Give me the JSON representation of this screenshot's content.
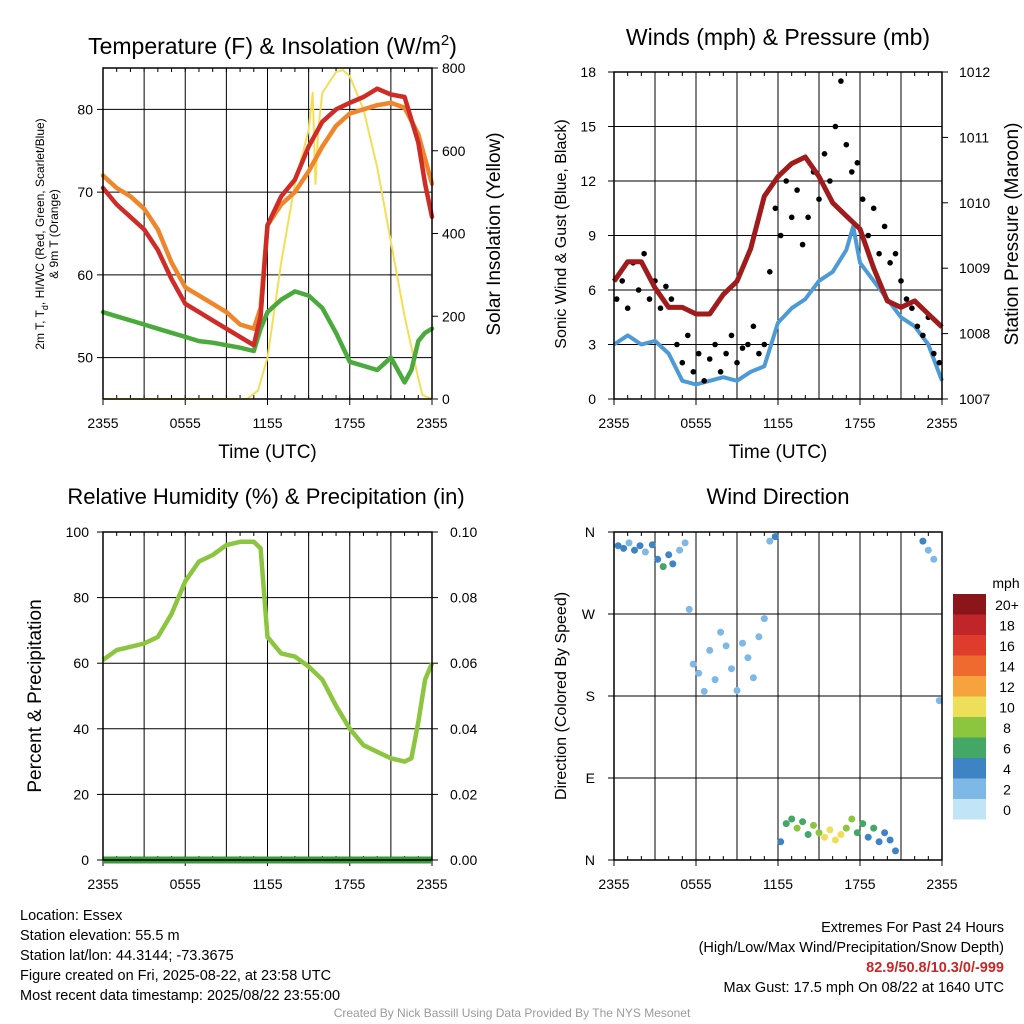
{
  "chart_data": [
    {
      "type": "line",
      "title": "Temperature (F) & Insolation (W/m",
      "title_sup": "2",
      "title_suffix": ")",
      "xlabel": "Time (UTC)",
      "ylabel_lines": [
        "2m T, T",
        "d",
        ", HI/WC (Red, Green, Scarlet/Blue)",
        "& 9m T (Orange)"
      ],
      "y2label": "Solar Insolation (Yellow)",
      "x_ticks": [
        "2355",
        "0555",
        "1155",
        "1755",
        "2355"
      ],
      "ylim": [
        45,
        85
      ],
      "y_ticks": [
        "50",
        "60",
        "70",
        "80"
      ],
      "y2lim": [
        0,
        800
      ],
      "y2_ticks": [
        "0",
        "200",
        "400",
        "600",
        "800"
      ],
      "x_hours": [
        0,
        24
      ],
      "series": [
        {
          "color": "#f0862c",
          "x": [
            0,
            1,
            2,
            3,
            4,
            5,
            6,
            7,
            8,
            9,
            10,
            11,
            11.5,
            12,
            13,
            14,
            15,
            16,
            17,
            18,
            19,
            20,
            21,
            22,
            23,
            23.5,
            24
          ],
          "y": [
            72,
            70.5,
            69.5,
            68,
            65.5,
            61.5,
            58.5,
            57.5,
            56.5,
            55.5,
            54,
            53.5,
            56,
            66,
            68.5,
            70,
            72.5,
            75.5,
            78,
            79.5,
            80,
            80.5,
            80.8,
            80.2,
            77,
            74,
            71
          ]
        },
        {
          "color": "#cf2b27",
          "x": [
            0,
            1,
            2,
            3,
            4,
            5,
            6,
            7,
            8,
            9,
            10,
            11,
            11.5,
            12,
            13,
            14,
            15,
            16,
            17,
            18,
            19,
            20,
            21,
            22,
            23,
            23.5,
            24
          ],
          "y": [
            70.5,
            68.5,
            67,
            65.5,
            63,
            59.5,
            56.5,
            55.5,
            54.5,
            53.5,
            52.5,
            51.5,
            55,
            66,
            69.5,
            71.5,
            75.5,
            78.5,
            80,
            80.8,
            81.5,
            82.5,
            81.8,
            81.5,
            76,
            71,
            67
          ]
        },
        {
          "color": "#4aab3c",
          "x": [
            0,
            1,
            2,
            3,
            4,
            5,
            6,
            7,
            8,
            9,
            10,
            11,
            11.5,
            12,
            13,
            14,
            15,
            16,
            17,
            18,
            19,
            20,
            21,
            22,
            22.5,
            23,
            23.5,
            24
          ],
          "y": [
            55.5,
            55,
            54.5,
            54,
            53.5,
            53,
            52.5,
            52,
            51.8,
            51.5,
            51.2,
            50.8,
            53.5,
            55.5,
            57,
            58,
            57.5,
            56,
            53,
            49.5,
            49,
            48.5,
            50,
            47,
            48.5,
            52,
            53,
            53.5
          ]
        },
        {
          "color": "#f3df57",
          "axis": "y2",
          "x": [
            0,
            10.5,
            11.3,
            12,
            13,
            14,
            15,
            15.3,
            15.5,
            15.7,
            16,
            17,
            17.5,
            18,
            19,
            20,
            21,
            22,
            23,
            23.3,
            24
          ],
          "y": [
            0,
            0,
            20,
            100,
            330,
            520,
            650,
            740,
            520,
            650,
            740,
            790,
            795,
            780,
            700,
            560,
            380,
            200,
            50,
            10,
            0
          ]
        }
      ]
    },
    {
      "type": "line",
      "title": "Winds (mph) & Pressure (mb)",
      "xlabel": "Time (UTC)",
      "ylabel": "Sonic Wind & Gust (Blue, Black)",
      "y2label": "Station Pressure (Maroon)",
      "x_ticks": [
        "2355",
        "0555",
        "1155",
        "1755",
        "2355"
      ],
      "ylim": [
        0,
        18
      ],
      "y_ticks": [
        "0",
        "3",
        "6",
        "9",
        "12",
        "15",
        "18"
      ],
      "y2lim": [
        1007,
        1012
      ],
      "y2_ticks": [
        "1007",
        "1008",
        "1009",
        "1010",
        "1011",
        "1012"
      ],
      "x_hours": [
        0,
        24
      ],
      "series": [
        {
          "color": "#a01c1c",
          "axis": "y2",
          "x": [
            0,
            1,
            2,
            3,
            4,
            5,
            6,
            7,
            8,
            9,
            10,
            11,
            12,
            13,
            14,
            15,
            16,
            17,
            18,
            19,
            20,
            21,
            22,
            23,
            24
          ],
          "y": [
            1008.8,
            1009.1,
            1009.1,
            1008.7,
            1008.4,
            1008.4,
            1008.3,
            1008.3,
            1008.6,
            1008.8,
            1009.3,
            1010.1,
            1010.4,
            1010.6,
            1010.7,
            1010.4,
            1010.0,
            1009.8,
            1009.6,
            1009.0,
            1008.5,
            1008.4,
            1008.5,
            1008.3,
            1008.1
          ]
        },
        {
          "color": "#4d9bd6",
          "x": [
            0,
            1,
            2,
            3,
            4,
            5,
            6,
            7,
            8,
            9,
            10,
            11,
            12,
            13,
            14,
            15,
            16,
            17,
            17.5,
            18,
            19,
            20,
            21,
            22,
            23,
            24
          ],
          "y": [
            3,
            3.5,
            3,
            3.2,
            2.5,
            1,
            0.8,
            1,
            1.2,
            1,
            1.5,
            1.8,
            4.2,
            5.0,
            5.5,
            6.5,
            7.0,
            8.2,
            9.5,
            7.5,
            6.5,
            5.5,
            4.5,
            4,
            3,
            1
          ]
        },
        {
          "color": "#000000",
          "mode": "markers",
          "x": [
            0.2,
            0.6,
            1.0,
            1.4,
            1.8,
            2.2,
            2.6,
            3.0,
            3.4,
            3.8,
            4.2,
            4.6,
            5.0,
            5.4,
            5.8,
            6.2,
            6.6,
            7.0,
            7.4,
            7.8,
            8.2,
            8.6,
            9.0,
            9.4,
            9.8,
            10.2,
            10.6,
            11.0,
            11.4,
            11.8,
            12.2,
            12.6,
            13.0,
            13.4,
            13.8,
            14.2,
            14.6,
            15.0,
            15.4,
            15.8,
            16.2,
            16.6,
            17.0,
            17.4,
            17.8,
            18.2,
            18.6,
            19.0,
            19.4,
            19.8,
            20.2,
            20.6,
            21.0,
            21.4,
            21.8,
            22.2,
            22.6,
            23.0,
            23.4,
            23.8
          ],
          "y": [
            5.5,
            6.5,
            5.0,
            7.5,
            6.0,
            8.0,
            5.5,
            6.5,
            5.0,
            6.2,
            5.5,
            3.0,
            2.0,
            3.5,
            1.5,
            2.5,
            1.0,
            2.2,
            3.0,
            1.5,
            2.5,
            3.5,
            2.0,
            2.8,
            3.0,
            4.0,
            2.5,
            3.0,
            7.0,
            10.5,
            9.0,
            12.0,
            10.0,
            11.5,
            8.5,
            10.0,
            12.5,
            11.0,
            13.5,
            12.0,
            15.0,
            17.5,
            14.0,
            12.5,
            13.0,
            11.0,
            9.0,
            10.5,
            8.0,
            9.5,
            7.5,
            8.0,
            6.5,
            5.5,
            5.0,
            4.0,
            3.5,
            4.5,
            2.5,
            2.0
          ]
        }
      ]
    },
    {
      "type": "line",
      "title": "Relative Humidity (%) & Precipitation (in)",
      "xlabel": "",
      "ylabel": "Percent & Precipitation",
      "x_ticks": [
        "2355",
        "0555",
        "1155",
        "1755",
        "2355"
      ],
      "ylim": [
        0,
        100
      ],
      "y_ticks": [
        "0",
        "20",
        "40",
        "60",
        "80",
        "100"
      ],
      "y2lim": [
        0,
        0.1
      ],
      "y2_ticks": [
        "0.00",
        "0.02",
        "0.04",
        "0.06",
        "0.08",
        "0.10"
      ],
      "x_hours": [
        0,
        24
      ],
      "series": [
        {
          "color": "#8cc63f",
          "x": [
            0,
            1,
            2,
            3,
            4,
            5,
            6,
            7,
            8,
            9,
            10,
            11,
            11.5,
            12,
            13,
            14,
            15,
            16,
            17,
            18,
            19,
            20,
            21,
            22,
            22.5,
            23,
            23.5,
            24
          ],
          "y": [
            61,
            64,
            65,
            66,
            68,
            75,
            85,
            91,
            93,
            96,
            97,
            97,
            95,
            68,
            63,
            62,
            59,
            55,
            47,
            40,
            35,
            33,
            31,
            30,
            31,
            42,
            55,
            60
          ]
        },
        {
          "color": "#3a9a3a",
          "axis": "y2",
          "x": [
            0,
            24
          ],
          "y": [
            0,
            0
          ]
        }
      ]
    },
    {
      "type": "scatter",
      "title": "Wind Direction",
      "xlabel": "",
      "ylabel": "Direction (Colored By Speed)",
      "x_ticks": [
        "2355",
        "0555",
        "1155",
        "1755",
        "2355"
      ],
      "y_tick_labels": [
        "N",
        "E",
        "S",
        "W",
        "N"
      ],
      "ylim": [
        0,
        360
      ],
      "x_hours": [
        0,
        24
      ],
      "colorbar": {
        "title": "mph",
        "labels": [
          "20+",
          "18",
          "16",
          "14",
          "12",
          "10",
          "8",
          "6",
          "4",
          "2",
          "0"
        ],
        "colors": [
          "#8b1518",
          "#c0252a",
          "#e03c2e",
          "#ef6a2e",
          "#f6a33d",
          "#eddf5a",
          "#8cc63f",
          "#44a766",
          "#3e83c4",
          "#7db8e6",
          "#c1e4f7"
        ]
      },
      "points": [
        {
          "x": 0.3,
          "y": 345,
          "speed": 4
        },
        {
          "x": 0.7,
          "y": 342,
          "speed": 3
        },
        {
          "x": 1.1,
          "y": 348,
          "speed": 2
        },
        {
          "x": 1.5,
          "y": 340,
          "speed": 3
        },
        {
          "x": 1.9,
          "y": 345,
          "speed": 4
        },
        {
          "x": 2.3,
          "y": 338,
          "speed": 2
        },
        {
          "x": 2.8,
          "y": 346,
          "speed": 3
        },
        {
          "x": 3.2,
          "y": 330,
          "speed": 4
        },
        {
          "x": 3.6,
          "y": 322,
          "speed": 5
        },
        {
          "x": 4.0,
          "y": 335,
          "speed": 3
        },
        {
          "x": 4.3,
          "y": 325,
          "speed": 4
        },
        {
          "x": 4.8,
          "y": 340,
          "speed": 2
        },
        {
          "x": 5.2,
          "y": 348,
          "speed": 2
        },
        {
          "x": 5.5,
          "y": 275,
          "speed": 1
        },
        {
          "x": 5.8,
          "y": 215,
          "speed": 1
        },
        {
          "x": 6.2,
          "y": 205,
          "speed": 1
        },
        {
          "x": 6.6,
          "y": 185,
          "speed": 1
        },
        {
          "x": 7.0,
          "y": 230,
          "speed": 1
        },
        {
          "x": 7.4,
          "y": 198,
          "speed": 1
        },
        {
          "x": 7.8,
          "y": 250,
          "speed": 1
        },
        {
          "x": 8.2,
          "y": 235,
          "speed": 1
        },
        {
          "x": 8.6,
          "y": 210,
          "speed": 1
        },
        {
          "x": 9.0,
          "y": 186,
          "speed": 1
        },
        {
          "x": 9.4,
          "y": 238,
          "speed": 1
        },
        {
          "x": 9.8,
          "y": 222,
          "speed": 1
        },
        {
          "x": 10.2,
          "y": 200,
          "speed": 1
        },
        {
          "x": 10.6,
          "y": 245,
          "speed": 1
        },
        {
          "x": 11.0,
          "y": 265,
          "speed": 1
        },
        {
          "x": 11.4,
          "y": 350,
          "speed": 2
        },
        {
          "x": 11.8,
          "y": 355,
          "speed": 3
        },
        {
          "x": 12.2,
          "y": 20,
          "speed": 4
        },
        {
          "x": 12.6,
          "y": 40,
          "speed": 5
        },
        {
          "x": 13.0,
          "y": 45,
          "speed": 6
        },
        {
          "x": 13.4,
          "y": 35,
          "speed": 7
        },
        {
          "x": 13.8,
          "y": 42,
          "speed": 6
        },
        {
          "x": 14.2,
          "y": 28,
          "speed": 5
        },
        {
          "x": 14.6,
          "y": 38,
          "speed": 7
        },
        {
          "x": 15.0,
          "y": 30,
          "speed": 8
        },
        {
          "x": 15.4,
          "y": 25,
          "speed": 9
        },
        {
          "x": 15.8,
          "y": 33,
          "speed": 10
        },
        {
          "x": 16.2,
          "y": 22,
          "speed": 10
        },
        {
          "x": 16.6,
          "y": 28,
          "speed": 9
        },
        {
          "x": 17.0,
          "y": 35,
          "speed": 8
        },
        {
          "x": 17.4,
          "y": 45,
          "speed": 7
        },
        {
          "x": 17.8,
          "y": 30,
          "speed": 6
        },
        {
          "x": 18.2,
          "y": 40,
          "speed": 5
        },
        {
          "x": 18.6,
          "y": 25,
          "speed": 4
        },
        {
          "x": 19.0,
          "y": 35,
          "speed": 5
        },
        {
          "x": 19.4,
          "y": 20,
          "speed": 4
        },
        {
          "x": 19.8,
          "y": 30,
          "speed": 3
        },
        {
          "x": 20.2,
          "y": 22,
          "speed": 4
        },
        {
          "x": 20.6,
          "y": 10,
          "speed": 3
        },
        {
          "x": 22.6,
          "y": 350,
          "speed": 3
        },
        {
          "x": 23.0,
          "y": 340,
          "speed": 2
        },
        {
          "x": 23.4,
          "y": 330,
          "speed": 2
        },
        {
          "x": 23.8,
          "y": 175,
          "speed": 1
        }
      ]
    }
  ],
  "info_left": {
    "location": "Location: Essex",
    "elevation": "Station elevation: 55.5 m",
    "latlon": "Station lat/lon: 44.3144; -73.3675",
    "created": "Figure created on Fri, 2025-08-22, at 23:58 UTC",
    "recent": "Most recent data timestamp: 2025/08/22 23:55:00"
  },
  "info_right": {
    "line1": "Extremes For Past 24 Hours",
    "line2": "(High/Low/Max Wind/Precipitation/Snow Depth)",
    "values": "82.9/50.8/10.3/0/-999",
    "gust": "Max Gust: 17.5 mph On 08/22 at 1640 UTC"
  },
  "credit": "Created By Nick Bassill Using Data Provided By The NYS Mesonet"
}
